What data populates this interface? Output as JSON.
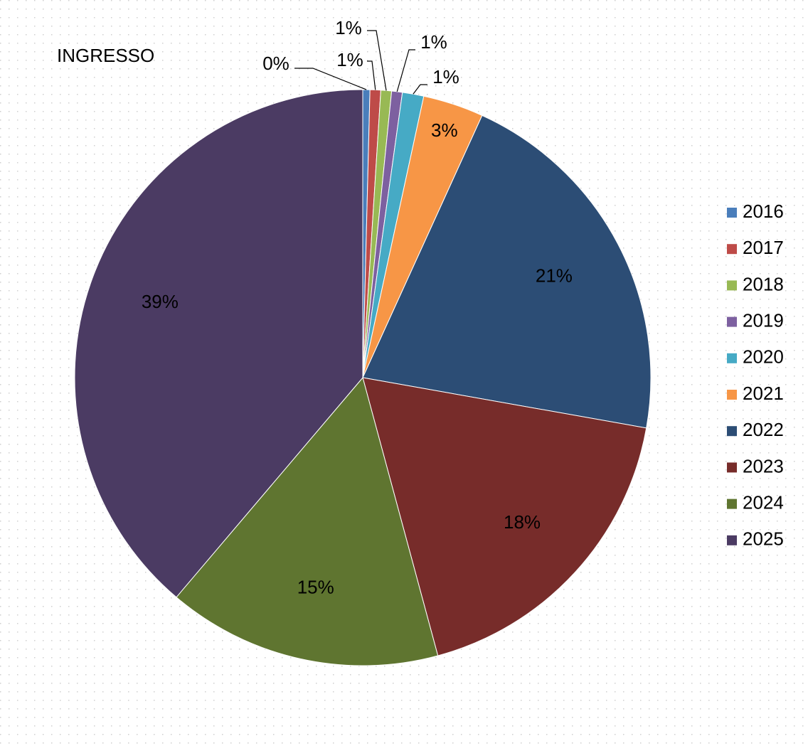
{
  "chart_data": {
    "type": "pie",
    "title": "INGRESSO",
    "categories": [
      "2016",
      "2017",
      "2018",
      "2019",
      "2020",
      "2021",
      "2022",
      "2023",
      "2024",
      "2025"
    ],
    "values": [
      0.4,
      0.6,
      0.6,
      0.6,
      1.2,
      3.4,
      21,
      18,
      15.4,
      38.8
    ],
    "value_labels": [
      "0%",
      "1%",
      "1%",
      "1%",
      "1%",
      "3%",
      "21%",
      "18%",
      "15%",
      "39%"
    ],
    "colors": [
      "#4a7ebb",
      "#be4b48",
      "#98b954",
      "#7d60a0",
      "#46aac5",
      "#f79646",
      "#2c4d75",
      "#772c2a",
      "#5f7530",
      "#4b3b63"
    ],
    "legend": "right"
  }
}
